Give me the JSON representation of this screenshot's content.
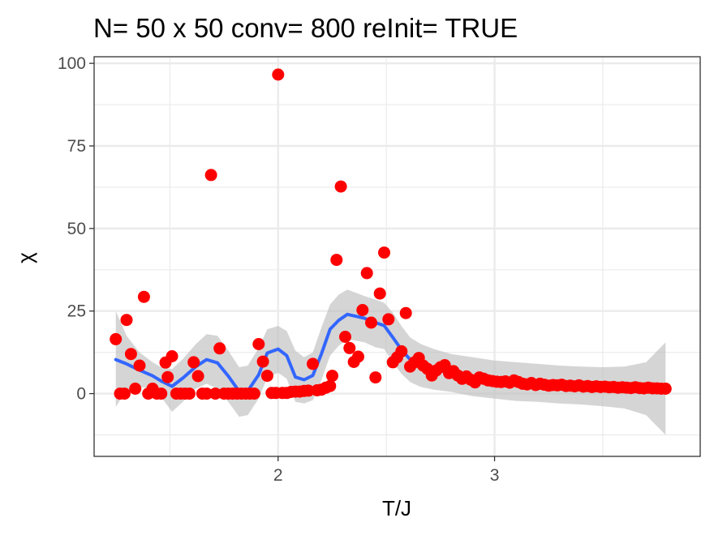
{
  "chart_data": {
    "type": "scatter",
    "title": "N= 50 x 50  conv= 800  reInit= TRUE",
    "xlabel": "T/J",
    "ylabel": "χ",
    "xlim": [
      1.15,
      3.95
    ],
    "ylim": [
      -19,
      102
    ],
    "x_ticks": [
      2,
      3
    ],
    "x_tick_labels": [
      "2",
      "3"
    ],
    "y_ticks": [
      0,
      25,
      50,
      75,
      100
    ],
    "y_tick_labels": [
      "0",
      "25",
      "50",
      "75",
      "100"
    ],
    "grid": true,
    "colors": {
      "points": "#ff0000",
      "smooth": "#3366ff",
      "band": "#bebebe",
      "grid": "#ebebeb",
      "panel_border": "#333333"
    },
    "points": [
      [
        1.25,
        16.5
      ],
      [
        1.27,
        0.0
      ],
      [
        1.29,
        0.0
      ],
      [
        1.3,
        22.3
      ],
      [
        1.32,
        12.0
      ],
      [
        1.34,
        1.5
      ],
      [
        1.36,
        8.5
      ],
      [
        1.38,
        29.3
      ],
      [
        1.4,
        0.0
      ],
      [
        1.42,
        1.5
      ],
      [
        1.44,
        0.0
      ],
      [
        1.46,
        0.0
      ],
      [
        1.48,
        9.4
      ],
      [
        1.49,
        5.0
      ],
      [
        1.51,
        11.3
      ],
      [
        1.53,
        0.0
      ],
      [
        1.55,
        0.0
      ],
      [
        1.57,
        0.0
      ],
      [
        1.59,
        0.0
      ],
      [
        1.61,
        9.5
      ],
      [
        1.63,
        5.3
      ],
      [
        1.65,
        0.0
      ],
      [
        1.67,
        0.0
      ],
      [
        1.69,
        66.2
      ],
      [
        1.71,
        0.0
      ],
      [
        1.73,
        13.7
      ],
      [
        1.75,
        0.0
      ],
      [
        1.77,
        0.0
      ],
      [
        1.79,
        0.0
      ],
      [
        1.81,
        0.0
      ],
      [
        1.83,
        0.0
      ],
      [
        1.85,
        0.0
      ],
      [
        1.87,
        0.0
      ],
      [
        1.89,
        0.0
      ],
      [
        1.91,
        15.0
      ],
      [
        1.93,
        9.7
      ],
      [
        1.95,
        5.4
      ],
      [
        1.97,
        0.2
      ],
      [
        1.99,
        0.2
      ],
      [
        2.0,
        96.6
      ],
      [
        2.02,
        0.2
      ],
      [
        2.04,
        0.2
      ],
      [
        2.06,
        0.5
      ],
      [
        2.08,
        0.6
      ],
      [
        2.1,
        0.6
      ],
      [
        2.12,
        0.8
      ],
      [
        2.14,
        0.9
      ],
      [
        2.16,
        9.0
      ],
      [
        2.18,
        1.0
      ],
      [
        2.2,
        1.2
      ],
      [
        2.22,
        1.8
      ],
      [
        2.24,
        2.3
      ],
      [
        2.25,
        5.4
      ],
      [
        2.27,
        40.5
      ],
      [
        2.29,
        62.7
      ],
      [
        2.31,
        17.2
      ],
      [
        2.33,
        13.8
      ],
      [
        2.35,
        9.6
      ],
      [
        2.37,
        11.2
      ],
      [
        2.39,
        25.3
      ],
      [
        2.41,
        36.5
      ],
      [
        2.43,
        21.5
      ],
      [
        2.45,
        4.9
      ],
      [
        2.47,
        30.3
      ],
      [
        2.49,
        42.7
      ],
      [
        2.51,
        22.5
      ],
      [
        2.53,
        9.5
      ],
      [
        2.55,
        11.0
      ],
      [
        2.57,
        12.8
      ],
      [
        2.59,
        24.4
      ],
      [
        2.61,
        8.2
      ],
      [
        2.63,
        9.5
      ],
      [
        2.65,
        10.8
      ],
      [
        2.67,
        8.5
      ],
      [
        2.69,
        7.5
      ],
      [
        2.71,
        5.5
      ],
      [
        2.73,
        7.0
      ],
      [
        2.75,
        8.0
      ],
      [
        2.77,
        8.6
      ],
      [
        2.79,
        6.2
      ],
      [
        2.81,
        6.8
      ],
      [
        2.83,
        5.5
      ],
      [
        2.85,
        4.5
      ],
      [
        2.87,
        5.2
      ],
      [
        2.89,
        4.2
      ],
      [
        2.91,
        3.4
      ],
      [
        2.93,
        4.9
      ],
      [
        2.95,
        4.5
      ],
      [
        2.97,
        4.0
      ],
      [
        2.99,
        3.8
      ],
      [
        3.01,
        3.6
      ],
      [
        3.03,
        3.5
      ],
      [
        3.05,
        3.7
      ],
      [
        3.07,
        3.3
      ],
      [
        3.09,
        4.0
      ],
      [
        3.11,
        3.5
      ],
      [
        3.13,
        3.0
      ],
      [
        3.15,
        2.8
      ],
      [
        3.17,
        3.2
      ],
      [
        3.19,
        2.6
      ],
      [
        3.21,
        3.0
      ],
      [
        3.23,
        2.7
      ],
      [
        3.25,
        2.4
      ],
      [
        3.27,
        2.6
      ],
      [
        3.29,
        2.5
      ],
      [
        3.31,
        2.7
      ],
      [
        3.33,
        2.3
      ],
      [
        3.35,
        2.4
      ],
      [
        3.37,
        2.2
      ],
      [
        3.39,
        2.5
      ],
      [
        3.41,
        2.1
      ],
      [
        3.43,
        2.3
      ],
      [
        3.45,
        2.0
      ],
      [
        3.47,
        2.2
      ],
      [
        3.49,
        2.0
      ],
      [
        3.51,
        2.1
      ],
      [
        3.53,
        1.9
      ],
      [
        3.55,
        2.0
      ],
      [
        3.57,
        1.8
      ],
      [
        3.59,
        1.9
      ],
      [
        3.61,
        1.8
      ],
      [
        3.63,
        1.7
      ],
      [
        3.65,
        1.9
      ],
      [
        3.67,
        1.7
      ],
      [
        3.69,
        1.6
      ],
      [
        3.71,
        1.8
      ],
      [
        3.73,
        1.6
      ],
      [
        3.75,
        1.6
      ],
      [
        3.77,
        1.5
      ],
      [
        3.79,
        1.5
      ]
    ],
    "smooth": {
      "x": [
        1.25,
        1.3,
        1.36,
        1.42,
        1.46,
        1.51,
        1.56,
        1.62,
        1.67,
        1.72,
        1.77,
        1.82,
        1.86,
        1.91,
        1.95,
        2.0,
        2.04,
        2.08,
        2.12,
        2.16,
        2.2,
        2.24,
        2.28,
        2.32,
        2.36,
        2.4,
        2.45,
        2.49,
        2.53,
        2.57,
        2.61,
        2.66,
        2.72,
        2.8,
        2.9,
        3.0,
        3.1,
        3.2,
        3.3,
        3.4,
        3.5,
        3.6,
        3.7,
        3.79
      ],
      "y": [
        10.3,
        9.0,
        7.1,
        5.4,
        3.8,
        2.2,
        4.7,
        8.2,
        10.3,
        9.3,
        5.3,
        0.7,
        0.8,
        5.7,
        12.3,
        13.5,
        11.5,
        5.0,
        4.2,
        5.5,
        12.0,
        19.5,
        22.2,
        24.0,
        23.4,
        22.8,
        21.5,
        20.6,
        17.0,
        13.3,
        10.3,
        8.6,
        7.5,
        6.3,
        5.0,
        4.2,
        3.6,
        3.2,
        2.7,
        2.4,
        2.0,
        1.8,
        1.6,
        1.4
      ],
      "upper": [
        25.0,
        17.5,
        12.5,
        9.5,
        8.0,
        7.4,
        10.5,
        15.0,
        18.0,
        17.5,
        13.0,
        8.0,
        8.5,
        13.8,
        19.5,
        20.5,
        19.0,
        13.0,
        11.0,
        12.5,
        20.0,
        27.0,
        30.0,
        31.5,
        30.5,
        29.5,
        28.5,
        27.5,
        24.5,
        20.5,
        17.0,
        15.0,
        13.5,
        12.0,
        11.0,
        10.0,
        9.5,
        9.0,
        8.5,
        8.2,
        8.0,
        8.2,
        9.5,
        15.5
      ],
      "lower": [
        -4.0,
        1.0,
        2.0,
        1.5,
        -1.0,
        -5.5,
        -2.5,
        1.5,
        3.0,
        1.5,
        -2.5,
        -7.0,
        -6.5,
        -1.5,
        4.8,
        6.3,
        4.5,
        -2.5,
        -3.0,
        -2.0,
        4.0,
        11.5,
        14.5,
        16.5,
        16.0,
        15.5,
        14.0,
        13.5,
        9.5,
        6.0,
        3.5,
        2.0,
        1.2,
        0.5,
        -0.8,
        -1.5,
        -2.2,
        -2.5,
        -3.0,
        -3.3,
        -3.8,
        -4.5,
        -6.5,
        -12.5
      ]
    }
  }
}
